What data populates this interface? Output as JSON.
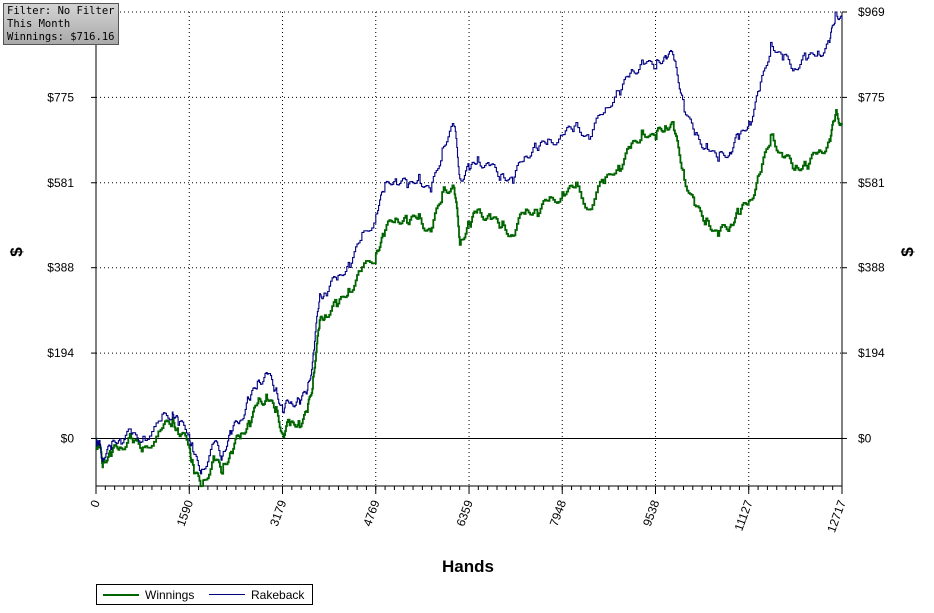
{
  "filter_box": {
    "line1": "Filter: No Filter",
    "line2": "This Month",
    "line3": "Winnings: $716.16"
  },
  "chart_data": {
    "type": "line",
    "xlabel": "Hands",
    "ylabel": "$",
    "xlim": [
      0,
      12717
    ],
    "ylim": [
      -108,
      969
    ],
    "x_ticks": [
      "0",
      "1590",
      "3179",
      "4769",
      "6359",
      "7948",
      "9538",
      "11127",
      "12717"
    ],
    "x_tick_values": [
      0,
      1590,
      3179,
      4769,
      6359,
      7948,
      9538,
      11127,
      12717
    ],
    "y_ticks_left": [
      "$775",
      "$581",
      "$388",
      "$194",
      "$0"
    ],
    "y_ticks_right": [
      "$969",
      "$775",
      "$581",
      "$388",
      "$194",
      "$0"
    ],
    "y_tick_values": [
      969,
      775,
      581,
      388,
      194,
      0
    ],
    "grid": true,
    "legend_position": "bottom-left",
    "series": [
      {
        "name": "Winnings",
        "color": "#006400",
        "x": [
          0,
          50,
          120,
          250,
          400,
          600,
          800,
          1100,
          1300,
          1400,
          1590,
          1650,
          1800,
          2000,
          2150,
          2300,
          2450,
          2600,
          2750,
          2900,
          3050,
          3179,
          3300,
          3450,
          3600,
          3700,
          3800,
          3900,
          4100,
          4300,
          4500,
          4769,
          4900,
          5100,
          5300,
          5500,
          5700,
          5900,
          6100,
          6200,
          6359,
          6500,
          6700,
          6900,
          7100,
          7300,
          7500,
          7700,
          7948,
          8150,
          8400,
          8650,
          8900,
          9100,
          9300,
          9538,
          9700,
          9850,
          10000,
          10200,
          10400,
          10600,
          10800,
          10950,
          11127,
          11300,
          11500,
          11700,
          11900,
          12100,
          12300,
          12500,
          12600,
          12717
        ],
        "y": [
          0,
          -20,
          -55,
          -40,
          -20,
          0,
          -20,
          20,
          40,
          10,
          -20,
          -60,
          -108,
          -40,
          -80,
          -30,
          0,
          40,
          80,
          100,
          60,
          10,
          30,
          40,
          60,
          140,
          250,
          280,
          300,
          340,
          380,
          420,
          460,
          500,
          490,
          510,
          470,
          560,
          570,
          440,
          490,
          520,
          510,
          480,
          460,
          510,
          520,
          540,
          560,
          570,
          520,
          580,
          620,
          660,
          700,
          680,
          710,
          700,
          610,
          530,
          500,
          460,
          480,
          510,
          540,
          600,
          690,
          640,
          610,
          620,
          650,
          680,
          735,
          716
        ]
      },
      {
        "name": "Rakeback",
        "color": "#000080",
        "x": [
          0,
          50,
          120,
          250,
          400,
          600,
          800,
          1100,
          1300,
          1400,
          1590,
          1650,
          1800,
          2000,
          2150,
          2300,
          2450,
          2600,
          2750,
          2900,
          3050,
          3179,
          3300,
          3450,
          3600,
          3700,
          3800,
          3900,
          4100,
          4300,
          4500,
          4769,
          4900,
          5100,
          5300,
          5500,
          5700,
          5900,
          6100,
          6200,
          6359,
          6500,
          6700,
          6900,
          7100,
          7300,
          7500,
          7700,
          7948,
          8150,
          8400,
          8650,
          8900,
          9100,
          9300,
          9538,
          9700,
          9850,
          10000,
          10200,
          10400,
          10600,
          10800,
          10950,
          11127,
          11300,
          11500,
          11700,
          11900,
          12100,
          12300,
          12500,
          12600,
          12717
        ],
        "y": [
          0,
          -15,
          -45,
          -25,
          0,
          10,
          5,
          40,
          60,
          30,
          10,
          -30,
          -70,
          -10,
          -40,
          10,
          40,
          90,
          130,
          150,
          110,
          60,
          80,
          90,
          110,
          190,
          310,
          330,
          360,
          400,
          450,
          510,
          560,
          590,
          570,
          600,
          560,
          660,
          710,
          590,
          610,
          640,
          620,
          600,
          580,
          640,
          660,
          680,
          690,
          710,
          680,
          740,
          790,
          830,
          860,
          840,
          870,
          860,
          770,
          690,
          670,
          630,
          650,
          680,
          720,
          790,
          900,
          860,
          840,
          860,
          880,
          900,
          969,
          950
        ]
      }
    ]
  }
}
